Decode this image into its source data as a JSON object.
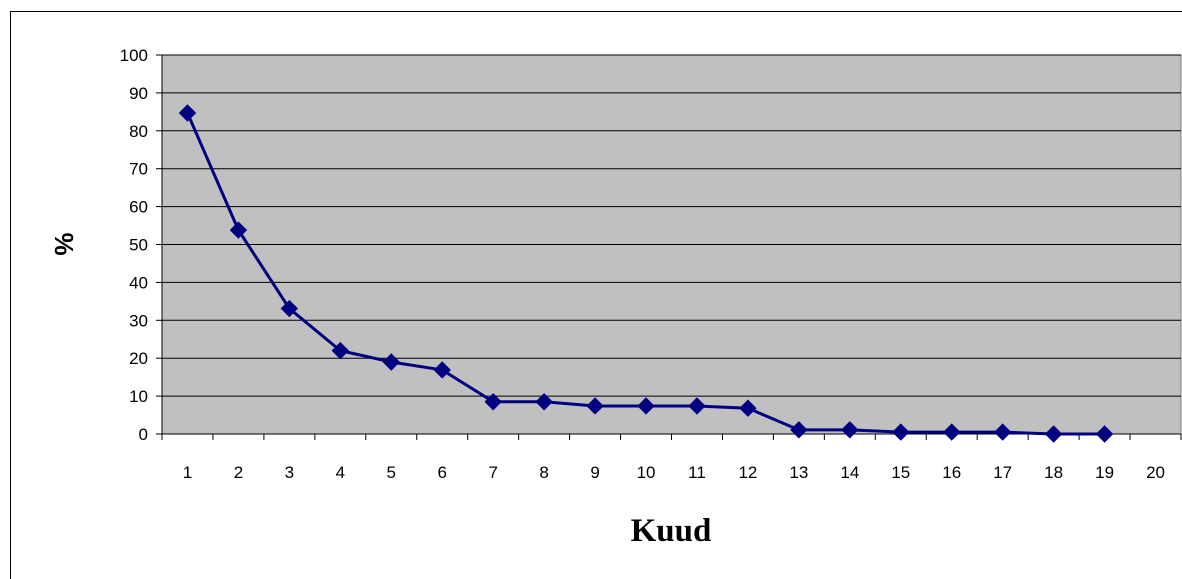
{
  "chart_data": {
    "type": "line",
    "title": "",
    "xlabel": "Kuud",
    "ylabel": "%",
    "categories": [
      "1",
      "2",
      "3",
      "4",
      "5",
      "6",
      "7",
      "8",
      "9",
      "10",
      "11",
      "12",
      "13",
      "14",
      "15",
      "16",
      "17",
      "18",
      "19",
      "20"
    ],
    "ylim": [
      0,
      100
    ],
    "yticks": [
      0,
      10,
      20,
      30,
      40,
      50,
      60,
      70,
      80,
      90,
      100
    ],
    "grid": "horizontal",
    "legend": "none",
    "series": [
      {
        "values": [
          84.7,
          53.8,
          33.1,
          22.0,
          19.0,
          16.9,
          8.5,
          8.5,
          7.4,
          7.4,
          7.4,
          6.8,
          1.1,
          1.1,
          0.5,
          0.5,
          0.5,
          0.0,
          0.0,
          null
        ],
        "marker": "diamond"
      }
    ],
    "colors": {
      "plot_background": "#c0c0c0",
      "line": "#000080",
      "marker": "#000080",
      "grid": "#000000"
    }
  }
}
